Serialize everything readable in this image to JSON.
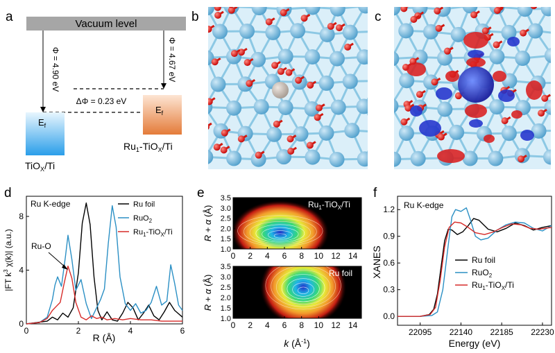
{
  "panels": {
    "a": {
      "label": "a",
      "vacuum_label": "Vacuum level",
      "phi_left": "Φ = 4.90 eV",
      "phi_right": "Φ = 4.67 eV",
      "delta_phi": "ΔΦ = 0.23 eV",
      "ef_left": "Ef",
      "ef_right": "Ef",
      "sample_left": "TiOX/Ti",
      "sample_right": "Ru1-TiOX/Ti",
      "colors": {
        "vacuum": "#a6a6a6",
        "left_box": "#3aa6ee",
        "right_box": "#e9884c"
      }
    },
    "b": {
      "label": "b"
    },
    "c": {
      "label": "c"
    }
  },
  "chart_data": [
    {
      "panel": "d",
      "type": "line",
      "annotation_title": "Ru K-edge",
      "peak_annotation": "Ru-O",
      "xlabel": "R (Å)",
      "ylabel": "|FT k3 χ(k)| (a.u.)",
      "xlim": [
        0,
        6
      ],
      "ylim": [
        0,
        9.5
      ],
      "xticks": [
        0,
        2,
        4,
        6
      ],
      "yticks": [
        0,
        4,
        8
      ],
      "legend": "top-right",
      "series": [
        {
          "name": "Ru foil",
          "color": "#000000",
          "x": [
            0,
            0.4,
            0.8,
            1.0,
            1.2,
            1.4,
            1.6,
            1.8,
            2.0,
            2.15,
            2.3,
            2.45,
            2.6,
            2.75,
            2.9,
            3.1,
            3.3,
            3.5,
            3.7,
            3.9,
            4.1,
            4.3,
            4.5,
            4.7,
            4.9,
            5.1,
            5.3,
            5.5,
            5.7,
            6.0
          ],
          "y": [
            0,
            0.1,
            0.2,
            0.5,
            0.3,
            0.8,
            0.5,
            1.2,
            3.8,
            7.5,
            9.0,
            7.4,
            3.5,
            1.0,
            0.3,
            0.9,
            0.3,
            0.2,
            0.8,
            1.6,
            1.2,
            0.3,
            0.8,
            1.4,
            0.6,
            0.3,
            0.9,
            1.6,
            1.0,
            0.5
          ]
        },
        {
          "name": "RuO2",
          "color": "#2a8fc4",
          "x": [
            0,
            0.5,
            0.8,
            1.0,
            1.1,
            1.2,
            1.35,
            1.5,
            1.6,
            1.75,
            1.9,
            2.1,
            2.3,
            2.5,
            2.7,
            2.85,
            3.0,
            3.15,
            3.3,
            3.45,
            3.6,
            3.8,
            4.0,
            4.2,
            4.4,
            4.6,
            4.8,
            5.0,
            5.2,
            5.4,
            5.55,
            5.7,
            5.85,
            6.0
          ],
          "y": [
            0,
            0.1,
            0.5,
            1.8,
            2.9,
            3.5,
            2.8,
            5.0,
            6.6,
            4.8,
            2.5,
            3.3,
            1.5,
            0.4,
            1.2,
            1.8,
            2.6,
            6.0,
            8.8,
            7.2,
            3.5,
            1.5,
            1.0,
            1.5,
            0.8,
            1.0,
            1.6,
            2.8,
            1.4,
            1.7,
            4.4,
            3.0,
            1.4,
            1.0
          ]
        },
        {
          "name": "Ru1-TiOX/Ti",
          "color": "#d62a28",
          "x": [
            0,
            0.5,
            0.8,
            1.0,
            1.15,
            1.3,
            1.45,
            1.6,
            1.75,
            1.9,
            2.1,
            2.3,
            2.5,
            2.7,
            2.9,
            3.1,
            3.4,
            3.7,
            4.0,
            4.4,
            4.8,
            5.2,
            5.6,
            6.0
          ],
          "y": [
            0,
            0.1,
            0.4,
            1.0,
            1.3,
            1.6,
            3.0,
            4.3,
            3.4,
            1.6,
            0.5,
            0.3,
            0.6,
            0.4,
            0.5,
            0.3,
            0.4,
            0.3,
            0.4,
            0.3,
            0.3,
            0.2,
            0.2,
            0.2
          ]
        }
      ]
    },
    {
      "panel": "e",
      "type": "heatmap",
      "xlabel": "k (Å-1)",
      "ylabel": "R + α (Å)",
      "xlim": [
        0,
        15
      ],
      "ylim": [
        1,
        3.5
      ],
      "xticks": [
        0,
        2,
        4,
        6,
        8,
        10,
        12,
        14
      ],
      "yticks": [
        1.0,
        1.5,
        2.0,
        2.5,
        3.0,
        3.5
      ],
      "maps": [
        {
          "name": "Ru1-TiOX/Ti",
          "center_k": 5.5,
          "center_r": 1.6
        },
        {
          "name": "Ru foil",
          "center_k": 8.2,
          "center_r": 2.3
        }
      ]
    },
    {
      "panel": "f",
      "type": "line",
      "annotation_title": "Ru K-edge",
      "xlabel": "Energy (eV)",
      "ylabel": "XANES",
      "xlim": [
        22070,
        22240
      ],
      "ylim": [
        -0.1,
        1.35
      ],
      "xticks": [
        22095,
        22140,
        22185,
        22230
      ],
      "yticks": [
        0.0,
        0.3,
        0.6,
        0.9,
        1.2
      ],
      "legend": "lower-right",
      "series": [
        {
          "name": "Ru foil",
          "color": "#000000",
          "x": [
            22070,
            22095,
            22105,
            22110,
            22114,
            22118,
            22122,
            22126,
            22130,
            22136,
            22142,
            22148,
            22154,
            22160,
            22170,
            22180,
            22190,
            22200,
            22210,
            22220,
            22230,
            22240
          ],
          "y": [
            0.0,
            0.0,
            0.02,
            0.08,
            0.25,
            0.55,
            0.85,
            0.98,
            0.97,
            0.92,
            0.95,
            1.02,
            1.1,
            1.08,
            0.98,
            0.95,
            0.99,
            1.05,
            1.02,
            0.97,
            1.0,
            1.02
          ]
        },
        {
          "name": "RuO2",
          "color": "#2a8fc4",
          "x": [
            22070,
            22095,
            22108,
            22114,
            22120,
            22126,
            22130,
            22134,
            22140,
            22146,
            22150,
            22156,
            22162,
            22170,
            22180,
            22190,
            22200,
            22210,
            22220,
            22230,
            22240
          ],
          "y": [
            0.0,
            0.0,
            0.01,
            0.05,
            0.3,
            0.8,
            1.12,
            1.2,
            1.18,
            1.22,
            1.1,
            0.9,
            0.86,
            0.88,
            0.97,
            1.03,
            1.06,
            1.05,
            0.99,
            0.96,
            1.02
          ]
        },
        {
          "name": "Ru1-TiOX/Ti",
          "color": "#d62a28",
          "x": [
            22070,
            22095,
            22106,
            22112,
            22117,
            22122,
            22127,
            22133,
            22140,
            22148,
            22156,
            22166,
            22176,
            22186,
            22196,
            22206,
            22216,
            22226,
            22240
          ],
          "y": [
            0.0,
            0.0,
            0.02,
            0.1,
            0.4,
            0.78,
            1.0,
            1.06,
            1.05,
            1.0,
            0.94,
            0.92,
            0.95,
            1.0,
            1.04,
            1.03,
            0.99,
            0.98,
            1.0
          ]
        }
      ]
    }
  ]
}
